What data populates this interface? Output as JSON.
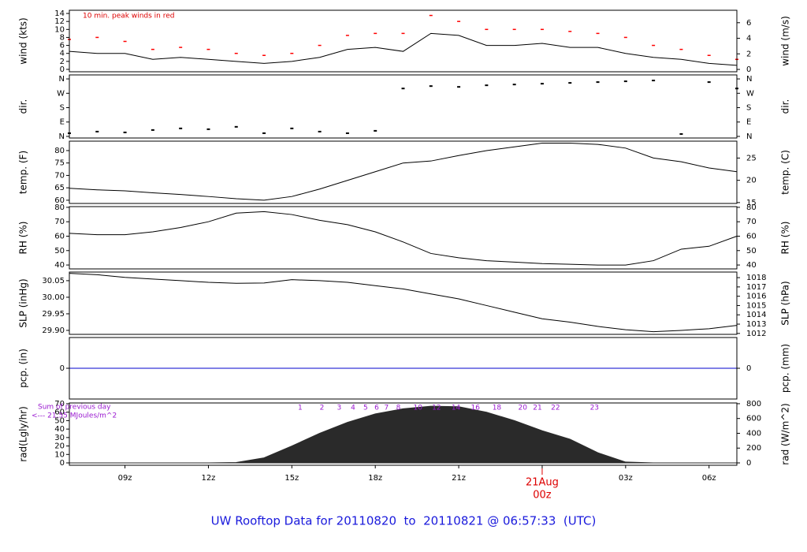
{
  "title": "UW Rooftop Data for 20110820  to  20110821 @ 06:57:33  (UTC)",
  "chart_data": [
    {
      "type": "line",
      "ylabel": "wind (kts)",
      "y2label": "wind (m/s)",
      "annotation": "10 min. peak winds in red",
      "x": [
        7,
        8,
        9,
        10,
        11,
        12,
        13,
        14,
        15,
        16,
        17,
        18,
        19,
        20,
        21,
        22,
        23,
        24,
        25,
        26,
        27,
        28,
        29,
        30,
        31
      ],
      "xlim": [
        7,
        31
      ],
      "ylim": [
        -0.6,
        14.8
      ],
      "yticks": [
        0,
        2,
        4,
        6,
        8,
        10,
        12,
        14
      ],
      "y2lim": [
        -0.3,
        7.6
      ],
      "y2ticks": [
        0,
        2,
        4,
        6
      ],
      "series": [
        {
          "color": "#000000",
          "style": "line",
          "values": [
            4.5,
            4,
            4,
            2.5,
            3,
            2.5,
            2,
            1.5,
            2,
            3,
            5,
            5.5,
            4.5,
            9,
            8.5,
            6,
            6,
            6.5,
            5.5,
            5.5,
            4,
            3,
            2.5,
            1.5,
            1
          ]
        },
        {
          "color": "#ff0000",
          "style": "points",
          "values": [
            7.5,
            8,
            7,
            5,
            5.5,
            5,
            4,
            3.5,
            4,
            6,
            8.5,
            9,
            9,
            13.5,
            12,
            10,
            10,
            10,
            9.5,
            9,
            8,
            6,
            5,
            3.5,
            2.5
          ]
        }
      ]
    },
    {
      "type": "scatter",
      "ylabel": "dir.",
      "y2label": "dir.",
      "x": [
        7,
        8,
        9,
        10,
        11,
        12,
        13,
        14,
        15,
        16,
        17,
        18,
        19,
        20,
        21,
        22,
        23,
        24,
        25,
        26,
        27,
        28,
        29,
        30,
        31
      ],
      "xlim": [
        7,
        31
      ],
      "ylim": [
        -10,
        385
      ],
      "yticks": [
        {
          "value": 0,
          "label": "N"
        },
        {
          "value": 90,
          "label": "E"
        },
        {
          "value": 180,
          "label": "S"
        },
        {
          "value": 270,
          "label": "W"
        },
        {
          "value": 360,
          "label": "N"
        }
      ],
      "y2lim": [
        -10,
        385
      ],
      "y2ticks": [
        {
          "value": 0,
          "label": "N"
        },
        {
          "value": 90,
          "label": "E"
        },
        {
          "value": 180,
          "label": "S"
        },
        {
          "value": 270,
          "label": "W"
        },
        {
          "value": 360,
          "label": "N"
        }
      ],
      "color": "#000000",
      "values": [
        20,
        30,
        25,
        40,
        50,
        45,
        60,
        20,
        50,
        30,
        20,
        35,
        300,
        315,
        310,
        320,
        325,
        330,
        335,
        340,
        345,
        350,
        15,
        340,
        300
      ]
    },
    {
      "type": "line",
      "ylabel": "temp. (F)",
      "y2label": "temp. (C)",
      "x": [
        7,
        8,
        9,
        10,
        11,
        12,
        13,
        14,
        15,
        16,
        17,
        18,
        19,
        20,
        21,
        22,
        23,
        24,
        25,
        26,
        27,
        28,
        29,
        30,
        31
      ],
      "xlim": [
        7,
        31
      ],
      "ylim": [
        58.7,
        83.8
      ],
      "yticks": [
        60,
        65,
        70,
        75,
        80
      ],
      "y2lim": [
        14.8,
        28.8
      ],
      "y2ticks": [
        15,
        20,
        25
      ],
      "series": [
        {
          "color": "#000000",
          "style": "line",
          "values": [
            64.8,
            64.2,
            63.8,
            63,
            62.3,
            61.5,
            60.6,
            60,
            61.5,
            64.5,
            68,
            71.5,
            75,
            75.8,
            78,
            80,
            81.5,
            83,
            83,
            82.5,
            81,
            77,
            75.5,
            73,
            71.5
          ]
        }
      ]
    },
    {
      "type": "line",
      "ylabel": "RH (%)",
      "y2label": "RH (%)",
      "x": [
        7,
        8,
        9,
        10,
        11,
        12,
        13,
        14,
        15,
        16,
        17,
        18,
        19,
        20,
        21,
        22,
        23,
        24,
        25,
        26,
        27,
        28,
        29,
        30,
        31
      ],
      "xlim": [
        7,
        31
      ],
      "ylim": [
        37.3,
        80.5
      ],
      "yticks": [
        40,
        50,
        60,
        70,
        80
      ],
      "y2lim": [
        37.3,
        80.5
      ],
      "y2ticks": [
        40,
        50,
        60,
        70,
        80
      ],
      "series": [
        {
          "color": "#000000",
          "style": "line",
          "values": [
            62,
            61,
            61,
            63,
            66,
            70,
            76,
            77,
            75,
            71,
            68,
            63,
            56,
            48,
            45,
            43,
            42,
            41,
            40.5,
            40,
            40,
            43,
            51,
            53,
            60
          ]
        }
      ]
    },
    {
      "type": "line",
      "ylabel": "SLP (inHg)",
      "y2label": "SLP (hPa)",
      "x": [
        7,
        8,
        9,
        10,
        11,
        12,
        13,
        14,
        15,
        16,
        17,
        18,
        19,
        20,
        21,
        22,
        23,
        24,
        25,
        26,
        27,
        28,
        29,
        30,
        31
      ],
      "xlim": [
        7,
        31
      ],
      "ylim": [
        29.888,
        30.076
      ],
      "yticks": [
        {
          "value": 29.9,
          "label": "29.90"
        },
        {
          "value": 29.95,
          "label": "29.95"
        },
        {
          "value": 30,
          "label": "30.00"
        },
        {
          "value": 30.05,
          "label": "30.05"
        }
      ],
      "y2lim": [
        1011.9,
        1018.6
      ],
      "y2ticks": [
        1012,
        1013,
        1014,
        1015,
        1016,
        1017,
        1018
      ],
      "series": [
        {
          "color": "#000000",
          "style": "line",
          "values": [
            30.072,
            30.068,
            30.06,
            30.055,
            30.05,
            30.045,
            30.042,
            30.043,
            30.053,
            30.05,
            30.045,
            30.035,
            30.025,
            30.01,
            29.995,
            29.975,
            29.955,
            29.935,
            29.925,
            29.912,
            29.902,
            29.896,
            29.9,
            29.905,
            29.915
          ]
        }
      ]
    },
    {
      "type": "line",
      "ylabel": "pcp. (in)",
      "y2label": "pcp. (mm)",
      "x": [
        7,
        8,
        9,
        10,
        11,
        12,
        13,
        14,
        15,
        16,
        17,
        18,
        19,
        20,
        21,
        22,
        23,
        24,
        25,
        26,
        27,
        28,
        29,
        30,
        31
      ],
      "xlim": [
        7,
        31
      ],
      "ylim": [
        -1,
        1
      ],
      "yticks": [
        0
      ],
      "y2lim": [
        -25.4,
        25.4
      ],
      "y2ticks": [
        0
      ],
      "series": [
        {
          "color": "#0000cc",
          "style": "line",
          "values": [
            0,
            0,
            0,
            0,
            0,
            0,
            0,
            0,
            0,
            0,
            0,
            0,
            0,
            0,
            0,
            0,
            0,
            0,
            0,
            0,
            0,
            0,
            0,
            0,
            0
          ]
        }
      ]
    },
    {
      "type": "area",
      "ylabel": "rad(Lgly/hr)",
      "y2label": "rad (W/m^2)",
      "annotations": [
        "Sum of previous day",
        "<--- 21.55 MJoules/m^2"
      ],
      "markers": [
        {
          "x": 15.3,
          "label": "1"
        },
        {
          "x": 16.08,
          "label": "2"
        },
        {
          "x": 16.7,
          "label": "3"
        },
        {
          "x": 17.2,
          "label": "4"
        },
        {
          "x": 17.65,
          "label": "5"
        },
        {
          "x": 18.05,
          "label": "6"
        },
        {
          "x": 18.4,
          "label": "7"
        },
        {
          "x": 18.83,
          "label": "8"
        },
        {
          "x": 19.53,
          "label": "10"
        },
        {
          "x": 20.2,
          "label": "12"
        },
        {
          "x": 20.9,
          "label": "14"
        },
        {
          "x": 21.6,
          "label": "16"
        },
        {
          "x": 22.37,
          "label": "18"
        },
        {
          "x": 23.3,
          "label": "20"
        },
        {
          "x": 23.83,
          "label": "21"
        },
        {
          "x": 24.48,
          "label": "22"
        },
        {
          "x": 25.88,
          "label": "23"
        }
      ],
      "x": [
        7,
        8,
        9,
        10,
        11,
        12,
        13,
        14,
        15,
        16,
        17,
        18,
        19,
        20,
        21,
        22,
        23,
        24,
        25,
        26,
        27,
        28,
        29,
        30,
        31
      ],
      "xlim": [
        7,
        31
      ],
      "ylim": [
        -2.8,
        70.9
      ],
      "yticks": [
        0,
        10,
        20,
        30,
        40,
        50,
        60,
        70
      ],
      "y2lim": [
        -32,
        810
      ],
      "y2ticks": [
        0,
        200,
        400,
        600,
        800
      ],
      "color": "#2a2a2a",
      "values": [
        0,
        0,
        0,
        0,
        0,
        0,
        0.5,
        6,
        20,
        35,
        48,
        58,
        64,
        67,
        66.5,
        60,
        50,
        38,
        28,
        12,
        1,
        0,
        0,
        0,
        0
      ],
      "date_label": "21Aug",
      "xticks": [
        {
          "value": 9,
          "label": "09z"
        },
        {
          "value": 12,
          "label": "12z"
        },
        {
          "value": 15,
          "label": "15z"
        },
        {
          "value": 18,
          "label": "18z"
        },
        {
          "value": 21,
          "label": "21z"
        },
        {
          "value": 24,
          "label": "00z"
        },
        {
          "value": 27,
          "label": "03z"
        },
        {
          "value": 30,
          "label": "06z"
        }
      ]
    }
  ]
}
